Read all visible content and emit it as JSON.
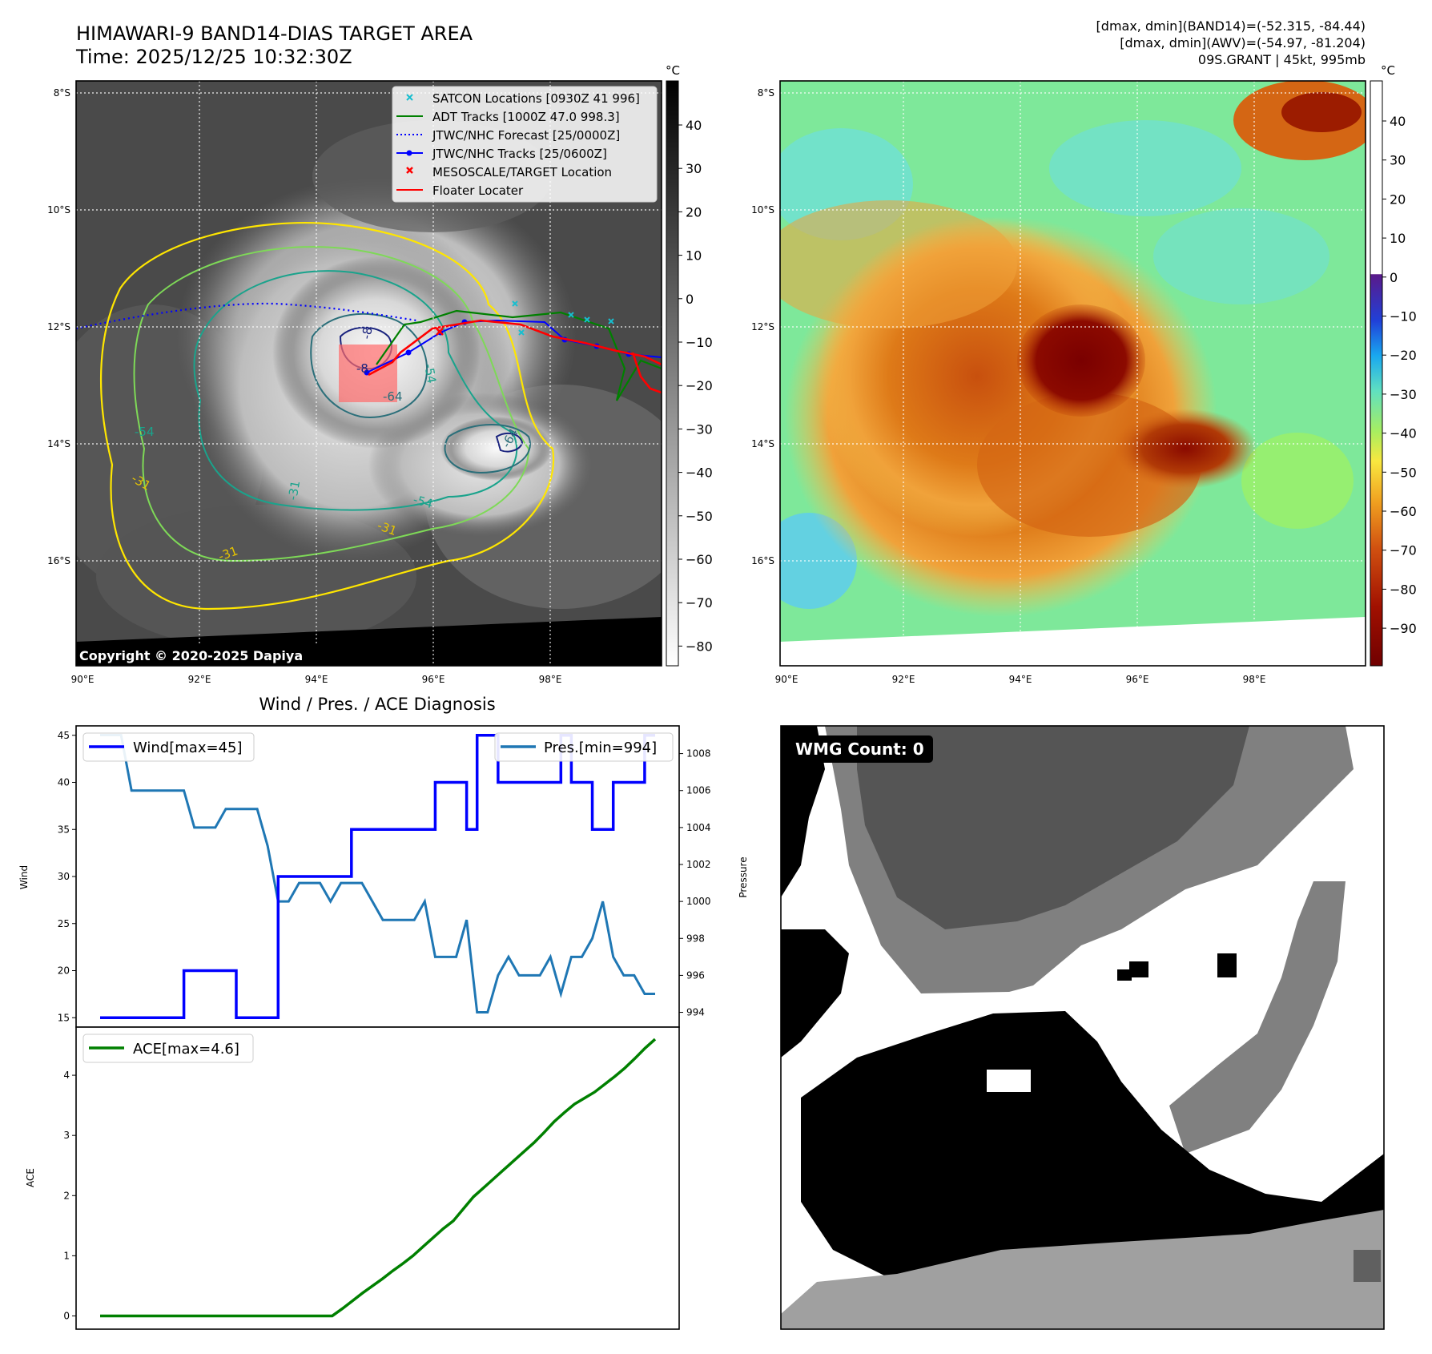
{
  "header": {
    "title_line1": "HIMAWARI-9 BAND14-DIAS TARGET AREA",
    "title_line2": "Time: 2025/12/25 10:32:30Z",
    "info_line1": "[dmax, dmin](BAND14)=(-52.315, -84.44)",
    "info_line2": "[dmax, dmin](AWV)=(-54.97, -81.204)",
    "info_line3": "09S.GRANT | 45kt, 995mb"
  },
  "map": {
    "lat_labels": [
      "8°S",
      "10°S",
      "12°S",
      "14°S",
      "16°S"
    ],
    "lon_labels": [
      "90°E",
      "92°E",
      "94°E",
      "96°E",
      "98°E"
    ],
    "copyright": "Copyright © 2020-2025 Dapiya",
    "contour_labels": [
      "-31",
      "-31",
      "-31",
      "-31",
      "-54",
      "-54",
      "-54",
      "-64",
      "-64",
      "-8",
      "-8"
    ],
    "legend": [
      {
        "label": "SATCON Locations [0930Z 41 996]",
        "color": "#17becf",
        "marker": "x"
      },
      {
        "label": "ADT Tracks [1000Z 47.0 998.3]",
        "color": "#008000",
        "marker": "line"
      },
      {
        "label": "JTWC/NHC Forecast [25/0000Z]",
        "color": "#0000ff",
        "marker": "dotted"
      },
      {
        "label": "JTWC/NHC Tracks [25/0600Z]",
        "color": "#0000ff",
        "marker": "line-dot"
      },
      {
        "label": "MESOSCALE/TARGET Location",
        "color": "#ff0000",
        "marker": "x"
      },
      {
        "label": "Floater Locater",
        "color": "#ff0000",
        "marker": "line"
      }
    ],
    "colorbar_gray": {
      "unit": "°C",
      "ticks": [
        "40",
        "30",
        "20",
        "10",
        "0",
        "−10",
        "−20",
        "−30",
        "−40",
        "−50",
        "−60",
        "−70",
        "−80"
      ]
    },
    "colorbar_color": {
      "unit": "°C",
      "ticks": [
        "40",
        "30",
        "20",
        "10",
        "0",
        "−10",
        "−20",
        "−30",
        "−40",
        "−50",
        "−60",
        "−70",
        "−80",
        "−90"
      ]
    }
  },
  "wmg": {
    "label": "WMG Count: 0"
  },
  "colors": {
    "wind": "#0000ff",
    "pressure": "#1f77b4",
    "ace": "#008000",
    "red": "#ff0000"
  },
  "chart_data": [
    {
      "type": "line",
      "title": "Wind / Pres. / ACE Diagnosis",
      "ylabel": "Wind",
      "y2label": "Pressure",
      "ylim": [
        14,
        46
      ],
      "y2lim": [
        993.2,
        1009.5
      ],
      "yticks": [
        15,
        20,
        25,
        30,
        35,
        40,
        45
      ],
      "y2ticks": [
        994,
        996,
        998,
        1000,
        1002,
        1004,
        1006,
        1008
      ],
      "series": [
        {
          "name": "Wind[max=45]",
          "axis": "left",
          "values": [
            15,
            15,
            15,
            15,
            15,
            15,
            15,
            15,
            20,
            20,
            20,
            20,
            20,
            15,
            15,
            15,
            15,
            30,
            30,
            30,
            30,
            30,
            30,
            30,
            35,
            35,
            35,
            35,
            35,
            35,
            35,
            35,
            40,
            40,
            40,
            35,
            45,
            45,
            40,
            40,
            40,
            40,
            40,
            40,
            45,
            40,
            40,
            35,
            35,
            40,
            40,
            40,
            45,
            45
          ]
        },
        {
          "name": "Pres.[min=994]",
          "axis": "right",
          "values": [
            1009,
            1009,
            1009,
            1006,
            1006,
            1006,
            1006,
            1006,
            1006,
            1004,
            1004,
            1004,
            1005,
            1005,
            1005,
            1005,
            1003,
            1000,
            1000,
            1001,
            1001,
            1001,
            1000,
            1001,
            1001,
            1001,
            1000,
            999,
            999,
            999,
            999,
            1000,
            997,
            997,
            997,
            999,
            994,
            994,
            996,
            997,
            996,
            996,
            996,
            997,
            995,
            997,
            997,
            998,
            1000,
            997,
            996,
            996,
            995,
            995
          ]
        }
      ]
    },
    {
      "type": "line",
      "ylabel": "ACE",
      "ylim": [
        -0.22,
        4.8
      ],
      "yticks": [
        0,
        1,
        2,
        3,
        4
      ],
      "series": [
        {
          "name": "ACE[max=4.6]",
          "values": [
            0,
            0,
            0,
            0,
            0,
            0,
            0,
            0,
            0,
            0,
            0,
            0,
            0,
            0,
            0,
            0,
            0,
            0,
            0,
            0,
            0,
            0,
            0,
            0,
            0.12,
            0.25,
            0.38,
            0.5,
            0.62,
            0.75,
            0.87,
            1.0,
            1.15,
            1.3,
            1.45,
            1.58,
            1.78,
            1.98,
            2.13,
            2.28,
            2.43,
            2.58,
            2.73,
            2.88,
            3.05,
            3.23,
            3.38,
            3.52,
            3.62,
            3.72,
            3.85,
            3.98,
            4.12,
            4.28,
            4.45,
            4.6
          ]
        }
      ]
    }
  ]
}
